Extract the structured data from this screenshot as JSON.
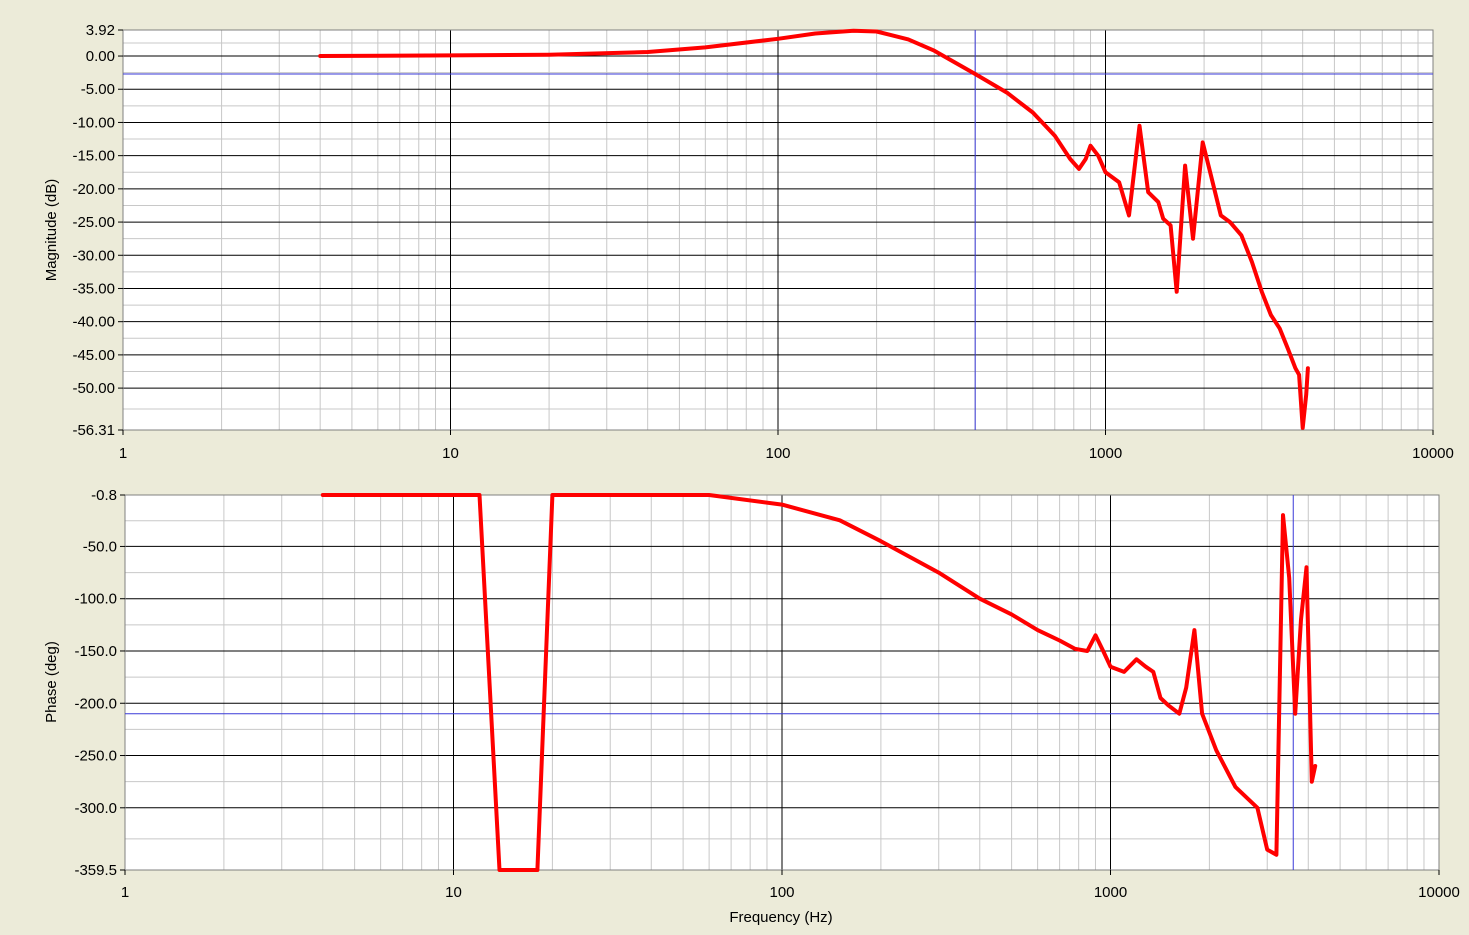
{
  "colors": {
    "panel_bg": "#ecebd9",
    "plot_bg": "#ffffff",
    "major_grid": "#000000",
    "minor_grid": "#c8c8c8",
    "trace": "#ff0000",
    "cursor": "#3a3ad8"
  },
  "chart_data": [
    {
      "type": "line",
      "name": "magnitude",
      "ylabel": "Magnitude (dB)",
      "xlabel": "",
      "xscale": "log",
      "xlim": [
        1,
        10000
      ],
      "ylim": [
        -56.31,
        3.92
      ],
      "x_ticks": [
        "1",
        "10",
        "100",
        "1000",
        "10000"
      ],
      "y_ticks": [
        "3.92",
        "0.00",
        "-5.00",
        "-10.00",
        "-15.00",
        "-20.00",
        "-25.00",
        "-30.00",
        "-35.00",
        "-40.00",
        "-45.00",
        "-50.00",
        "-56.31"
      ],
      "grid": true,
      "cursor": {
        "x": 400,
        "y": -2.7
      },
      "series": [
        {
          "color": "#ff0000",
          "points": [
            [
              4,
              0.0
            ],
            [
              10,
              0.1
            ],
            [
              20,
              0.2
            ],
            [
              40,
              0.6
            ],
            [
              60,
              1.3
            ],
            [
              100,
              2.6
            ],
            [
              130,
              3.4
            ],
            [
              170,
              3.8
            ],
            [
              200,
              3.7
            ],
            [
              250,
              2.5
            ],
            [
              300,
              0.8
            ],
            [
              400,
              -2.7
            ],
            [
              500,
              -5.5
            ],
            [
              600,
              -8.5
            ],
            [
              700,
              -12.0
            ],
            [
              780,
              -15.5
            ],
            [
              830,
              -17.0
            ],
            [
              870,
              -15.5
            ],
            [
              900,
              -13.5
            ],
            [
              950,
              -15.0
            ],
            [
              1000,
              -17.5
            ],
            [
              1100,
              -19.0
            ],
            [
              1180,
              -24.0
            ],
            [
              1270,
              -10.5
            ],
            [
              1350,
              -20.5
            ],
            [
              1450,
              -22.0
            ],
            [
              1500,
              -24.5
            ],
            [
              1580,
              -25.5
            ],
            [
              1650,
              -35.5
            ],
            [
              1750,
              -16.5
            ],
            [
              1850,
              -27.5
            ],
            [
              1980,
              -13.0
            ],
            [
              2100,
              -18.0
            ],
            [
              2250,
              -24.0
            ],
            [
              2400,
              -25.0
            ],
            [
              2600,
              -27.0
            ],
            [
              2800,
              -31.0
            ],
            [
              3000,
              -35.5
            ],
            [
              3200,
              -39.0
            ],
            [
              3400,
              -41.0
            ],
            [
              3600,
              -44.0
            ],
            [
              3800,
              -47.0
            ],
            [
              3900,
              -48.0
            ],
            [
              4000,
              -56.0
            ],
            [
              4100,
              -51.0
            ],
            [
              4150,
              -47.0
            ]
          ]
        }
      ]
    },
    {
      "type": "line",
      "name": "phase",
      "ylabel": "Phase (deg)",
      "xlabel": "Frequency (Hz)",
      "xscale": "log",
      "xlim": [
        1,
        10000
      ],
      "ylim": [
        -359.5,
        -0.8
      ],
      "x_ticks": [
        "1",
        "10",
        "100",
        "1000",
        "10000"
      ],
      "y_ticks": [
        "-0.8",
        "-50.0",
        "-100.0",
        "-150.0",
        "-200.0",
        "-250.0",
        "-300.0",
        "-359.5"
      ],
      "grid": true,
      "cursor": {
        "x": 3600,
        "y": -210
      },
      "series": [
        {
          "color": "#ff0000",
          "points": [
            [
              4,
              -0.8
            ],
            [
              12,
              -0.8
            ],
            [
              13.8,
              -359.5
            ],
            [
              18,
              -359.5
            ],
            [
              20,
              -0.8
            ],
            [
              60,
              -0.8
            ],
            [
              100,
              -10.0
            ],
            [
              150,
              -25.0
            ],
            [
              200,
              -45.0
            ],
            [
              300,
              -75.0
            ],
            [
              400,
              -100.0
            ],
            [
              500,
              -115.0
            ],
            [
              600,
              -130.0
            ],
            [
              700,
              -140.0
            ],
            [
              780,
              -148.0
            ],
            [
              850,
              -150.0
            ],
            [
              900,
              -135.0
            ],
            [
              950,
              -150.0
            ],
            [
              1000,
              -165.0
            ],
            [
              1100,
              -170.0
            ],
            [
              1200,
              -158.0
            ],
            [
              1280,
              -165.0
            ],
            [
              1350,
              -170.0
            ],
            [
              1420,
              -195.0
            ],
            [
              1500,
              -202.0
            ],
            [
              1620,
              -210.0
            ],
            [
              1700,
              -185.0
            ],
            [
              1800,
              -130.0
            ],
            [
              1900,
              -210.0
            ],
            [
              2100,
              -245.0
            ],
            [
              2400,
              -280.0
            ],
            [
              2800,
              -300.0
            ],
            [
              3000,
              -340.0
            ],
            [
              3200,
              -345.0
            ],
            [
              3350,
              -20.0
            ],
            [
              3500,
              -80.0
            ],
            [
              3650,
              -210.0
            ],
            [
              3800,
              -120.0
            ],
            [
              3950,
              -70.0
            ],
            [
              4100,
              -275.0
            ],
            [
              4200,
              -260.0
            ]
          ]
        }
      ]
    }
  ]
}
